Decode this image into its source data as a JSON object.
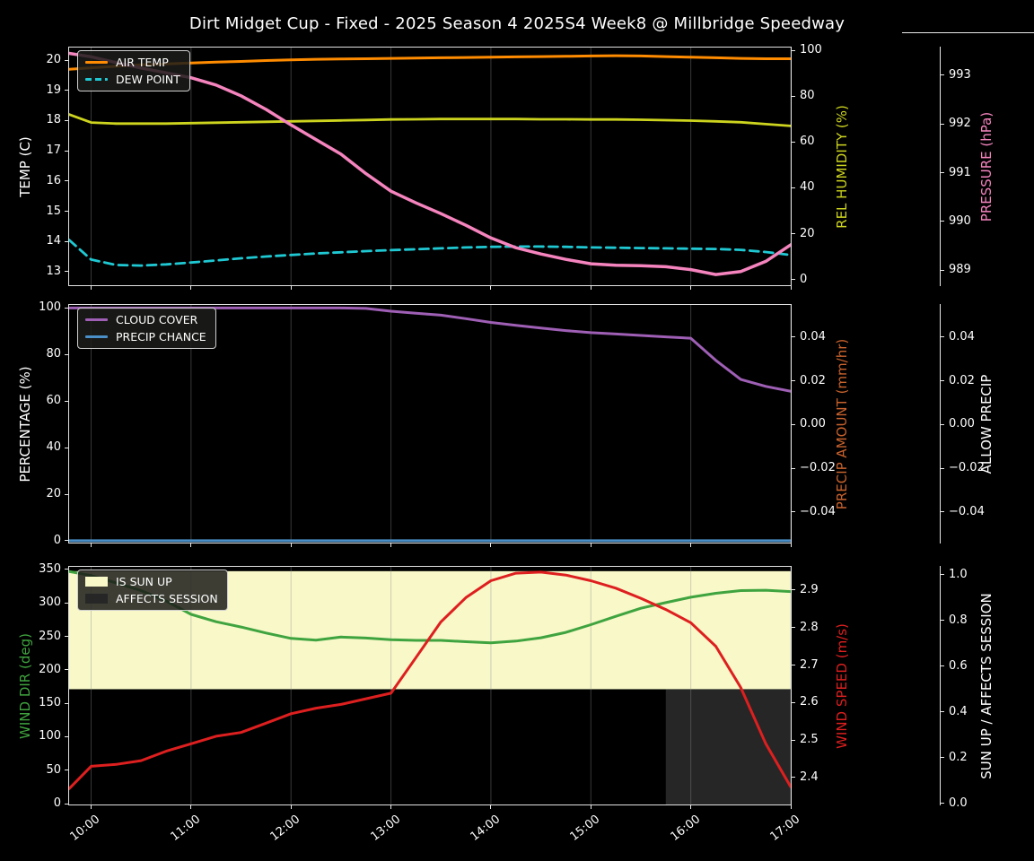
{
  "chart_data": {
    "type": "line",
    "title": "Dirt Midget Cup - Fixed - 2025 Season 4 2025S4 Week8 @ Millbridge Speedway",
    "background_color": "#000000",
    "grid": {
      "vertical": true,
      "horizontal": false
    },
    "x_axis": {
      "xlim": [
        9.78,
        17.0
      ],
      "tick_values": [
        10,
        11,
        12,
        13,
        14,
        15,
        16,
        17
      ],
      "tick_labels": [
        "10:00",
        "11:00",
        "12:00",
        "13:00",
        "14:00",
        "15:00",
        "16:00",
        "17:00"
      ]
    },
    "x_hours": [
      9.78,
      10,
      10.25,
      10.5,
      10.75,
      11,
      11.25,
      11.5,
      11.75,
      12,
      12.25,
      12.5,
      12.75,
      13,
      13.25,
      13.5,
      13.75,
      14,
      14.25,
      14.5,
      14.75,
      15,
      15.25,
      15.5,
      15.75,
      16,
      16.25,
      16.5,
      16.75,
      17
    ],
    "plots": [
      {
        "name": "temperature",
        "axes": [
          {
            "id": "temp",
            "side": "left",
            "attached": true,
            "label": "TEMP (C)",
            "label_color": "#ffffff",
            "ylim": [
              12.55,
              20.42
            ],
            "tick_values": [
              13,
              14,
              15,
              16,
              17,
              18,
              19,
              20
            ],
            "tick_labels": [
              "13",
              "14",
              "15",
              "16",
              "17",
              "18",
              "19",
              "20"
            ]
          },
          {
            "id": "humidity",
            "side": "right",
            "attached": true,
            "label": "REL HUMIDITY (%)",
            "label_color": "#cdd41e",
            "ylim": [
              -2.5,
              101.2
            ],
            "tick_values": [
              0,
              20,
              40,
              60,
              80,
              100
            ],
            "tick_labels": [
              "0",
              "20",
              "40",
              "60",
              "80",
              "100"
            ]
          },
          {
            "id": "pressure",
            "side": "right",
            "attached": false,
            "label": "PRESSURE (hPa)",
            "label_color": "#f584be",
            "ylim": [
              988.69,
              993.57
            ],
            "tick_values": [
              989,
              990,
              991,
              992,
              993
            ],
            "tick_labels": [
              "989",
              "990",
              "991",
              "992",
              "993"
            ]
          }
        ],
        "legend": [
          {
            "label": "AIR TEMP",
            "swatch": "line",
            "color": "#ff8c00"
          },
          {
            "label": "DEW POINT",
            "swatch": "dash",
            "color": "#1fc9d4"
          }
        ],
        "bands": [],
        "series": [
          {
            "name": "AIR TEMP",
            "axis": "temp",
            "color": "#ff8c00",
            "width": 3,
            "dash": null,
            "values": [
              19.7,
              19.75,
              19.8,
              19.85,
              19.88,
              19.91,
              19.94,
              19.96,
              19.99,
              20.01,
              20.03,
              20.04,
              20.05,
              20.06,
              20.07,
              20.08,
              20.09,
              20.1,
              20.11,
              20.12,
              20.13,
              20.14,
              20.15,
              20.14,
              20.12,
              20.1,
              20.08,
              20.06,
              20.05,
              20.05
            ]
          },
          {
            "name": "REL HUMIDITY",
            "axis": "humidity",
            "color": "#cdd41e",
            "width": 2.8,
            "dash": null,
            "values": [
              72,
              68.5,
              68,
              68,
              68,
              68.2,
              68.4,
              68.6,
              68.8,
              69,
              69.2,
              69.4,
              69.6,
              69.8,
              69.9,
              70,
              70,
              70,
              70,
              69.9,
              69.9,
              69.8,
              69.8,
              69.7,
              69.5,
              69.3,
              69,
              68.6,
              67.8,
              67
            ]
          },
          {
            "name": "DEW POINT",
            "axis": "temp",
            "color": "#1fc9d4",
            "width": 2.8,
            "dash": "10 6",
            "values": [
              14.05,
              13.4,
              13.22,
              13.2,
              13.24,
              13.3,
              13.37,
              13.44,
              13.5,
              13.55,
              13.6,
              13.64,
              13.68,
              13.71,
              13.74,
              13.77,
              13.8,
              13.82,
              13.83,
              13.83,
              13.82,
              13.8,
              13.79,
              13.78,
              13.77,
              13.76,
              13.75,
              13.72,
              13.65,
              13.55
            ]
          },
          {
            "name": "PRESSURE",
            "axis": "pressure",
            "color": "#f584be",
            "width": 3.5,
            "dash": null,
            "values": [
              993.45,
              993.38,
              993.26,
              993.15,
              993.05,
              992.95,
              992.8,
              992.58,
              992.3,
              991.98,
              991.68,
              991.38,
              990.98,
              990.62,
              990.38,
              990.16,
              989.92,
              989.66,
              989.46,
              989.33,
              989.22,
              989.13,
              989.1,
              989.09,
              989.07,
              989.01,
              988.91,
              988.97,
              989.18,
              989.52
            ]
          }
        ]
      },
      {
        "name": "precipitation",
        "axes": [
          {
            "id": "percentage",
            "side": "left",
            "attached": true,
            "label": "PERCENTAGE (%)",
            "label_color": "#ffffff",
            "ylim": [
              -0.8,
              101.3
            ],
            "tick_values": [
              0,
              20,
              40,
              60,
              80,
              100
            ],
            "tick_labels": [
              "0",
              "20",
              "40",
              "60",
              "80",
              "100"
            ]
          },
          {
            "id": "precip_amount",
            "side": "right",
            "attached": true,
            "label": "PRECIP AMOUNT (mm/hr)",
            "label_color": "#c8622d",
            "ylim": [
              -0.054,
              0.0547
            ],
            "tick_values": [
              -0.04,
              -0.02,
              0,
              0.02,
              0.04
            ],
            "tick_labels": [
              "−0.04",
              "−0.02",
              "0.00",
              "0.02",
              "0.04"
            ]
          },
          {
            "id": "allow_precip",
            "side": "right",
            "attached": false,
            "label": "ALLOW PRECIP",
            "label_color": "#ffffff",
            "ylim": [
              -0.054,
              0.0547
            ],
            "tick_values": [
              -0.04,
              -0.02,
              0,
              0.02,
              0.04
            ],
            "tick_labels": [
              "−0.04",
              "−0.02",
              "0.00",
              "0.02",
              "0.04"
            ]
          }
        ],
        "legend": [
          {
            "label": "CLOUD COVER",
            "swatch": "line",
            "color": "#9e5fb5"
          },
          {
            "label": "PRECIP CHANCE",
            "swatch": "line",
            "color": "#4a8fc7"
          }
        ],
        "bands": [],
        "series": [
          {
            "name": "CLOUD COVER",
            "axis": "percentage",
            "color": "#9e5fb5",
            "width": 3,
            "dash": null,
            "values": [
              100,
              100,
              100,
              100,
              100,
              100,
              100,
              100,
              100,
              100,
              100,
              100,
              99.8,
              98.6,
              97.7,
              96.9,
              95.4,
              93.8,
              92.5,
              91.4,
              90.3,
              89.4,
              88.8,
              88.2,
              87.6,
              87.0,
              77.5,
              69.3,
              66.3,
              64.2
            ]
          },
          {
            "name": "PRECIP CHANCE",
            "axis": "percentage",
            "color": "#4a8fc7",
            "width": 3,
            "dash": null,
            "values": [
              0,
              0,
              0,
              0,
              0,
              0,
              0,
              0,
              0,
              0,
              0,
              0,
              0,
              0,
              0,
              0,
              0,
              0,
              0,
              0,
              0,
              0,
              0,
              0,
              0,
              0,
              0,
              0,
              0,
              0
            ]
          }
        ]
      },
      {
        "name": "wind",
        "axes": [
          {
            "id": "wind_dir",
            "side": "left",
            "attached": true,
            "label": "WIND DIR (deg)",
            "label_color": "#3fa43f",
            "ylim": [
              -1.3,
              354
            ],
            "tick_values": [
              0,
              50,
              100,
              150,
              200,
              250,
              300,
              350
            ],
            "tick_labels": [
              "0",
              "50",
              "100",
              "150",
              "200",
              "250",
              "300",
              "350"
            ]
          },
          {
            "id": "wind_speed",
            "side": "right",
            "attached": true,
            "label": "WIND SPEED (m/s)",
            "label_color": "#de1f1f",
            "ylim": [
              2.328,
              2.962
            ],
            "tick_values": [
              2.4,
              2.5,
              2.6,
              2.7,
              2.8,
              2.9
            ],
            "tick_labels": [
              "2.4",
              "2.5",
              "2.6",
              "2.7",
              "2.8",
              "2.9"
            ]
          },
          {
            "id": "sun",
            "side": "right",
            "attached": false,
            "label": "SUN UP / AFFECTS SESSION",
            "label_color": "#ffffff",
            "ylim": [
              -0.004,
              1.035
            ],
            "tick_values": [
              0,
              0.2,
              0.4,
              0.6,
              0.8,
              1.0
            ],
            "tick_labels": [
              "0.0",
              "0.2",
              "0.4",
              "0.6",
              "0.8",
              "1.0"
            ]
          }
        ],
        "legend": [
          {
            "label": "IS SUN UP",
            "swatch": "patch",
            "color": "#f8f8c8"
          },
          {
            "label": "AFFECTS SESSION",
            "swatch": "patch",
            "color": "#262626"
          }
        ],
        "bands": [
          {
            "name": "is_sun_up",
            "axis": "sun",
            "color": "#f8f8c8",
            "x_from": 9.78,
            "x_to": 17.0,
            "y_from": 0.5,
            "y_to": 1.016
          },
          {
            "name": "affects_session",
            "axis": "sun",
            "color": "#262626",
            "x_from": 15.75,
            "x_to": 17.0,
            "y_from": -0.004,
            "y_to": 0.5
          }
        ],
        "series": [
          {
            "name": "WIND DIR",
            "axis": "wind_dir",
            "color": "#3fa43f",
            "width": 3,
            "dash": null,
            "values": [
              347,
              341,
              330,
              318.5,
              303,
              283,
              272,
              264,
              255,
              247,
              244.5,
              249,
              247.5,
              245,
              244,
              244,
              242,
              240.5,
              243,
              248,
              256,
              267.5,
              280,
              292,
              300.5,
              308.5,
              314.5,
              318.5,
              319,
              317
            ]
          },
          {
            "name": "WIND SPEED",
            "axis": "wind_speed",
            "color": "#de1f1f",
            "width": 3,
            "dash": null,
            "values": [
              2.37,
              2.43,
              2.435,
              2.445,
              2.47,
              2.49,
              2.51,
              2.52,
              2.545,
              2.57,
              2.585,
              2.595,
              2.61,
              2.625,
              2.72,
              2.815,
              2.88,
              2.925,
              2.945,
              2.948,
              2.94,
              2.925,
              2.905,
              2.878,
              2.848,
              2.813,
              2.75,
              2.64,
              2.49,
              2.375
            ]
          }
        ]
      }
    ]
  }
}
